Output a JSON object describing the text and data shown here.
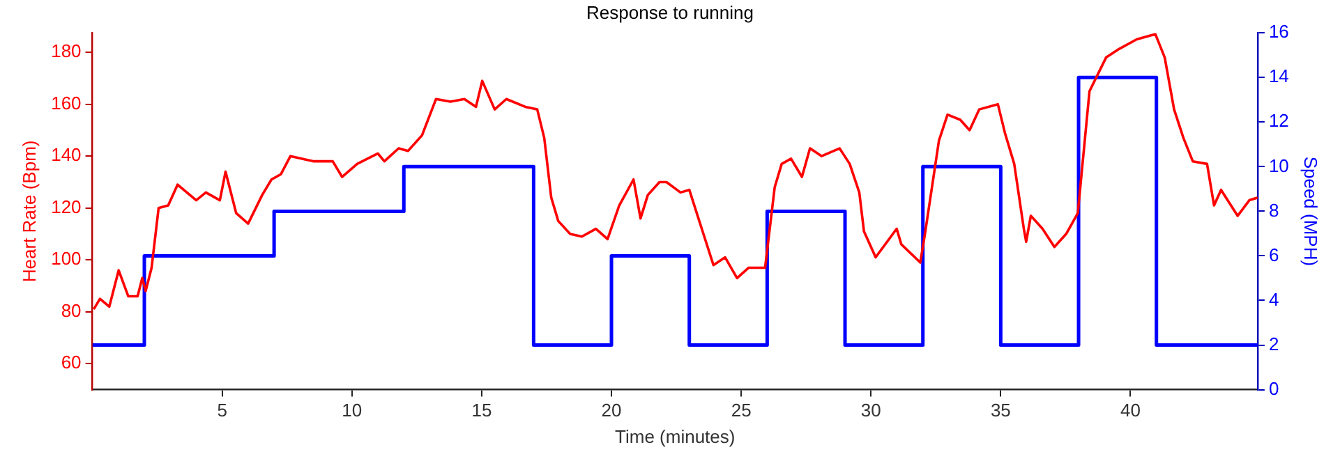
{
  "chart_data": {
    "type": "line",
    "title": "Response to running",
    "xlabel": "Time (minutes)",
    "ylabel": "Heart Rate (Bpm)",
    "y2label": "Speed (MPH)",
    "xlim": [
      0,
      44.9
    ],
    "xticks": [
      5,
      10,
      15,
      20,
      25,
      30,
      35,
      40
    ],
    "ylim": [
      50,
      187.5
    ],
    "yticks": [
      60,
      80,
      100,
      120,
      140,
      160,
      180
    ],
    "y2lim": [
      0,
      16
    ],
    "y2ticks": [
      0,
      2,
      4,
      6,
      8,
      10,
      12,
      14,
      16
    ],
    "series": [
      {
        "type": "line",
        "color": "#ff0000",
        "x": [
          0.05,
          0.29,
          0.65,
          1.01,
          1.38,
          1.74,
          1.92,
          2.05,
          2.28,
          2.55,
          2.92,
          3.28,
          4.0,
          4.37,
          4.91,
          5.13,
          5.54,
          6.0,
          6.54,
          6.9,
          7.26,
          7.63,
          8.53,
          9.26,
          9.62,
          10.2,
          11.0,
          11.25,
          11.8,
          12.16,
          12.7,
          13.24,
          13.8,
          14.33,
          14.78,
          15.02,
          15.5,
          15.95,
          16.68,
          17.14,
          17.41,
          17.68,
          17.95,
          18.41,
          18.86,
          19.4,
          19.85,
          20.3,
          20.85,
          21.12,
          21.4,
          21.85,
          22.12,
          22.66,
          23.0,
          23.48,
          23.93,
          24.38,
          24.84,
          25.29,
          25.92,
          26.29,
          26.56,
          26.92,
          27.34,
          27.65,
          28.1,
          28.79,
          29.18,
          29.55,
          29.73,
          30.18,
          30.99,
          31.17,
          31.9,
          32.08,
          32.62,
          32.95,
          33.44,
          33.8,
          34.17,
          34.89,
          35.16,
          35.52,
          35.89,
          35.98,
          36.16,
          36.61,
          37.07,
          37.52,
          37.97,
          38.42,
          39.06,
          39.51,
          40.24,
          40.96,
          41.32,
          41.68,
          42.04,
          42.4,
          42.95,
          43.22,
          43.49,
          44.13,
          44.58,
          44.9
        ],
        "values": [
          81,
          85,
          82,
          96,
          86,
          86,
          93,
          88,
          97,
          120,
          121,
          129,
          123,
          126,
          123,
          134,
          118,
          114,
          125,
          131,
          133,
          140,
          138,
          138,
          132,
          137,
          141,
          138,
          143,
          142,
          148,
          162,
          161,
          162,
          159,
          169,
          158,
          162,
          159,
          158,
          147,
          124,
          115,
          110,
          109,
          112,
          108,
          121,
          131,
          116,
          125,
          130,
          130,
          126,
          127,
          112,
          98,
          101,
          93,
          97,
          97,
          128,
          137,
          139,
          132,
          143,
          140,
          143,
          137,
          126,
          111,
          101,
          112,
          106,
          99,
          110,
          146,
          156,
          154,
          150,
          158,
          160,
          149,
          137,
          112,
          107,
          117,
          112,
          105,
          110,
          118,
          165,
          178,
          181,
          185,
          187,
          178,
          158,
          147,
          138,
          137,
          121,
          127,
          117,
          123,
          124
        ]
      },
      {
        "type": "step",
        "axis": "y2",
        "color": "#0000ff",
        "x": [
          0,
          2,
          7,
          12,
          17,
          20,
          23,
          26,
          29,
          32,
          35,
          38,
          41,
          44.9
        ],
        "values": [
          2,
          6,
          8,
          10,
          2,
          6,
          2,
          8,
          2,
          10,
          2,
          14,
          2,
          2
        ]
      }
    ]
  }
}
